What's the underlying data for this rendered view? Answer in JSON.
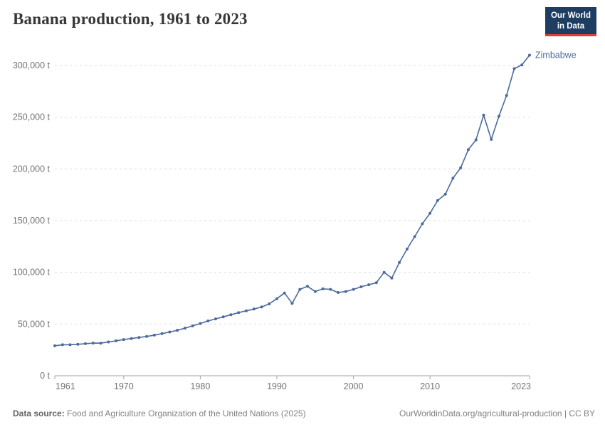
{
  "header": {
    "title": "Banana production, 1961 to 2023",
    "logo": {
      "line1": "Our World",
      "line2": "in Data"
    }
  },
  "chart_data": {
    "type": "line",
    "title": "Banana production, 1961 to 2023",
    "unit": "t",
    "xlim": [
      1961,
      2023
    ],
    "ylim": [
      0,
      300000
    ],
    "grid": "horizontal-dashed",
    "legend_position": "line-end-label",
    "x": [
      1961,
      1962,
      1963,
      1964,
      1965,
      1966,
      1967,
      1968,
      1969,
      1970,
      1971,
      1972,
      1973,
      1974,
      1975,
      1976,
      1977,
      1978,
      1979,
      1980,
      1981,
      1982,
      1983,
      1984,
      1985,
      1986,
      1987,
      1988,
      1989,
      1990,
      1991,
      1992,
      1993,
      1994,
      1995,
      1996,
      1997,
      1998,
      1999,
      2000,
      2001,
      2002,
      2003,
      2004,
      2005,
      2006,
      2007,
      2008,
      2009,
      2010,
      2011,
      2012,
      2013,
      2014,
      2015,
      2016,
      2017,
      2018,
      2019,
      2020,
      2021,
      2022,
      2023
    ],
    "series": [
      {
        "name": "Zimbabwe",
        "color": "#4C6A9C",
        "values": [
          29000,
          30000,
          30000,
          30400,
          31000,
          31600,
          31500,
          32700,
          33800,
          35000,
          36000,
          37000,
          38000,
          39300,
          40700,
          42300,
          44000,
          46000,
          48200,
          50500,
          53000,
          55000,
          57000,
          59000,
          61000,
          62800,
          64500,
          66500,
          69500,
          74500,
          80000,
          70000,
          83500,
          86500,
          81500,
          84000,
          83500,
          80500,
          81500,
          83500,
          86000,
          88000,
          90000,
          100000,
          94500,
          109500,
          122500,
          134500,
          147000,
          157000,
          169500,
          175500,
          191000,
          201000,
          218500,
          228000,
          252000,
          228500,
          251000,
          271000,
          297000,
          300500,
          310000
        ]
      }
    ],
    "x_ticks": [
      1961,
      1970,
      1980,
      1990,
      2000,
      2010,
      2023
    ],
    "y_ticks": [
      {
        "value": 0,
        "label": "0 t"
      },
      {
        "value": 50000,
        "label": "50,000 t"
      },
      {
        "value": 100000,
        "label": "100,000 t"
      },
      {
        "value": 150000,
        "label": "150,000 t"
      },
      {
        "value": 200000,
        "label": "200,000 t"
      },
      {
        "value": 250000,
        "label": "250,000 t"
      },
      {
        "value": 300000,
        "label": "300,000 t"
      }
    ]
  },
  "footer": {
    "datasource_label": "Data source:",
    "datasource": "Food and Agriculture Organization of the United Nations (2025)",
    "credit": "OurWorldinData.org/agricultural-production | CC BY"
  },
  "colors": {
    "line": "#4C6A9C",
    "series_label": "#4C6A9C",
    "grid": "#dcdcdc",
    "axis": "#a3a3a3",
    "tick_text": "#737373",
    "title_text": "#373737",
    "logo_bg": "#1d3d63",
    "logo_accent": "#dc3f34",
    "footer_text": "#818181"
  }
}
